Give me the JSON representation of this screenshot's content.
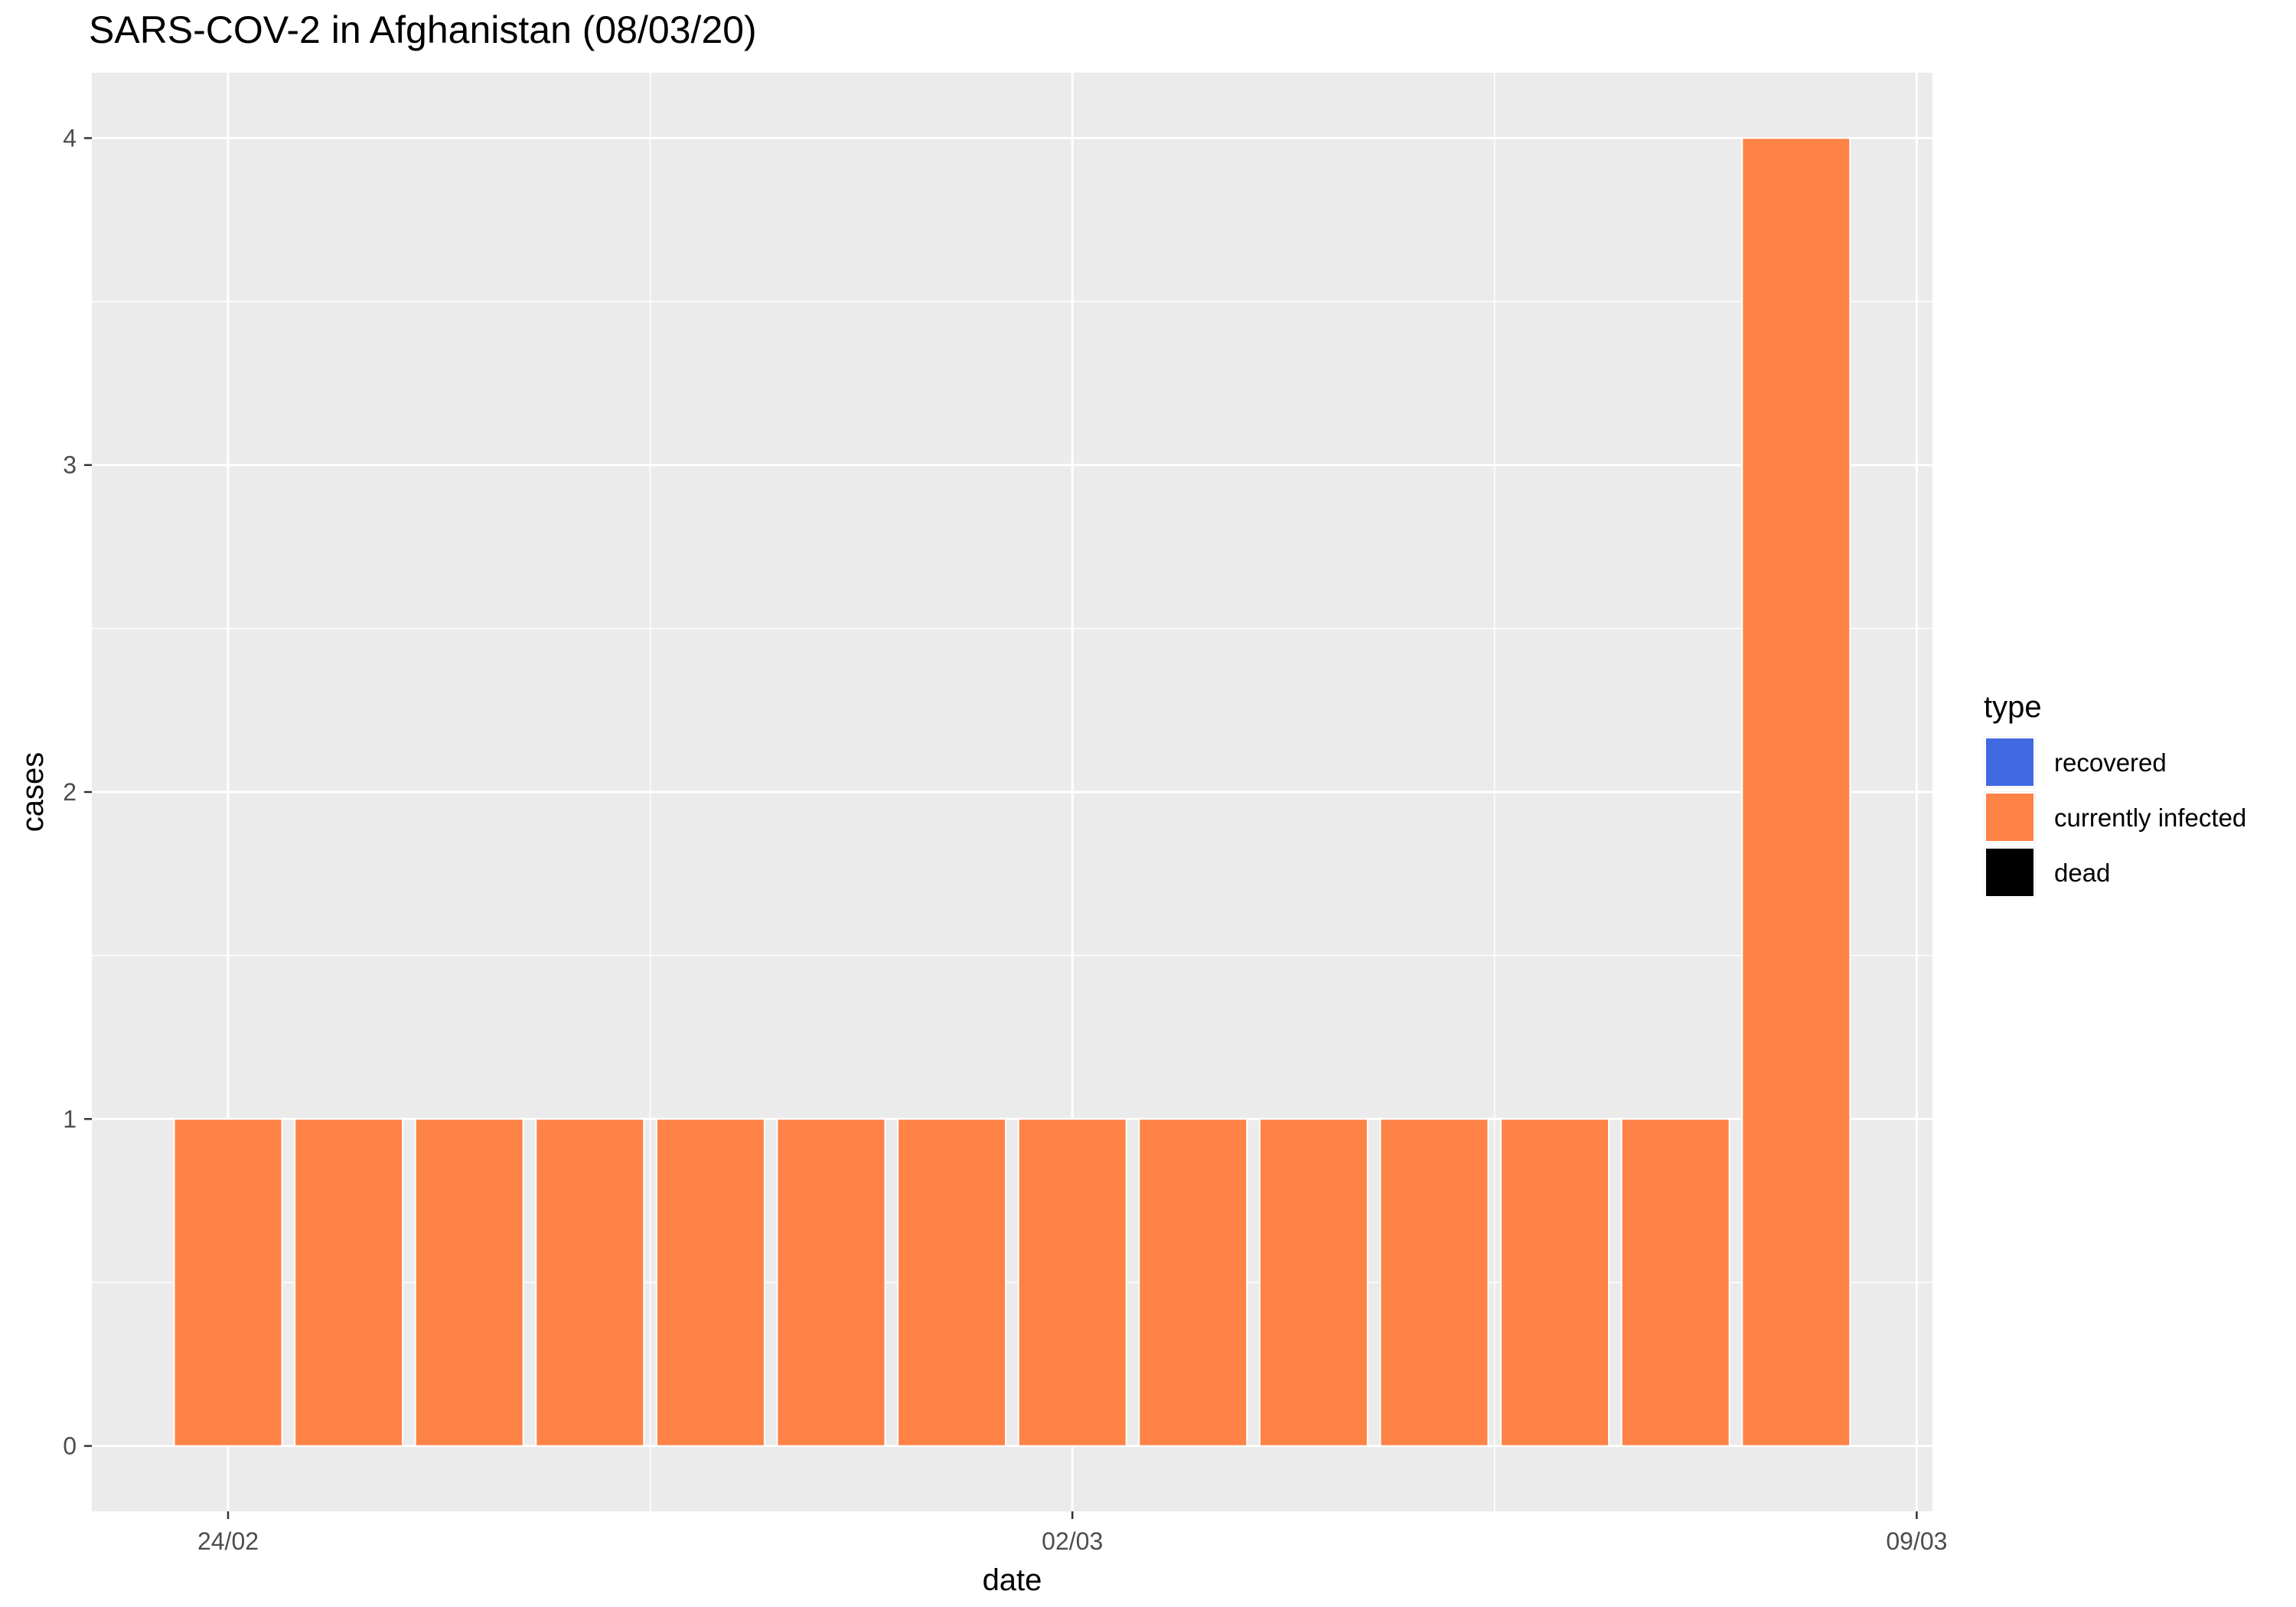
{
  "chart_data": {
    "type": "bar",
    "title": "SARS-COV-2 in Afghanistan (08/03/20)",
    "xlabel": "date",
    "ylabel": "cases",
    "categories": [
      "24/02",
      "25/02",
      "26/02",
      "27/02",
      "28/02",
      "29/02",
      "01/03",
      "02/03",
      "03/03",
      "04/03",
      "05/03",
      "06/03",
      "07/03",
      "08/03"
    ],
    "series": [
      {
        "name": "recovered",
        "values": [
          0,
          0,
          0,
          0,
          0,
          0,
          0,
          0,
          0,
          0,
          0,
          0,
          0,
          0
        ]
      },
      {
        "name": "currently infected",
        "values": [
          1,
          1,
          1,
          1,
          1,
          1,
          1,
          1,
          1,
          1,
          1,
          1,
          1,
          4
        ]
      },
      {
        "name": "dead",
        "values": [
          0,
          0,
          0,
          0,
          0,
          0,
          0,
          0,
          0,
          0,
          0,
          0,
          0,
          0
        ]
      }
    ],
    "x_tick_labels": [
      "24/02",
      "02/03",
      "09/03"
    ],
    "y_ticks": [
      0,
      1,
      2,
      3,
      4
    ],
    "ylim": [
      -0.2,
      4.2
    ],
    "legend_title": "type",
    "legend_position": "right",
    "grid": true,
    "colors": {
      "recovered": "#4169e1",
      "currently infected": "#ff8247",
      "dead": "#000000",
      "panel_background": "#ebebeb",
      "gridline": "#ffffff"
    }
  }
}
